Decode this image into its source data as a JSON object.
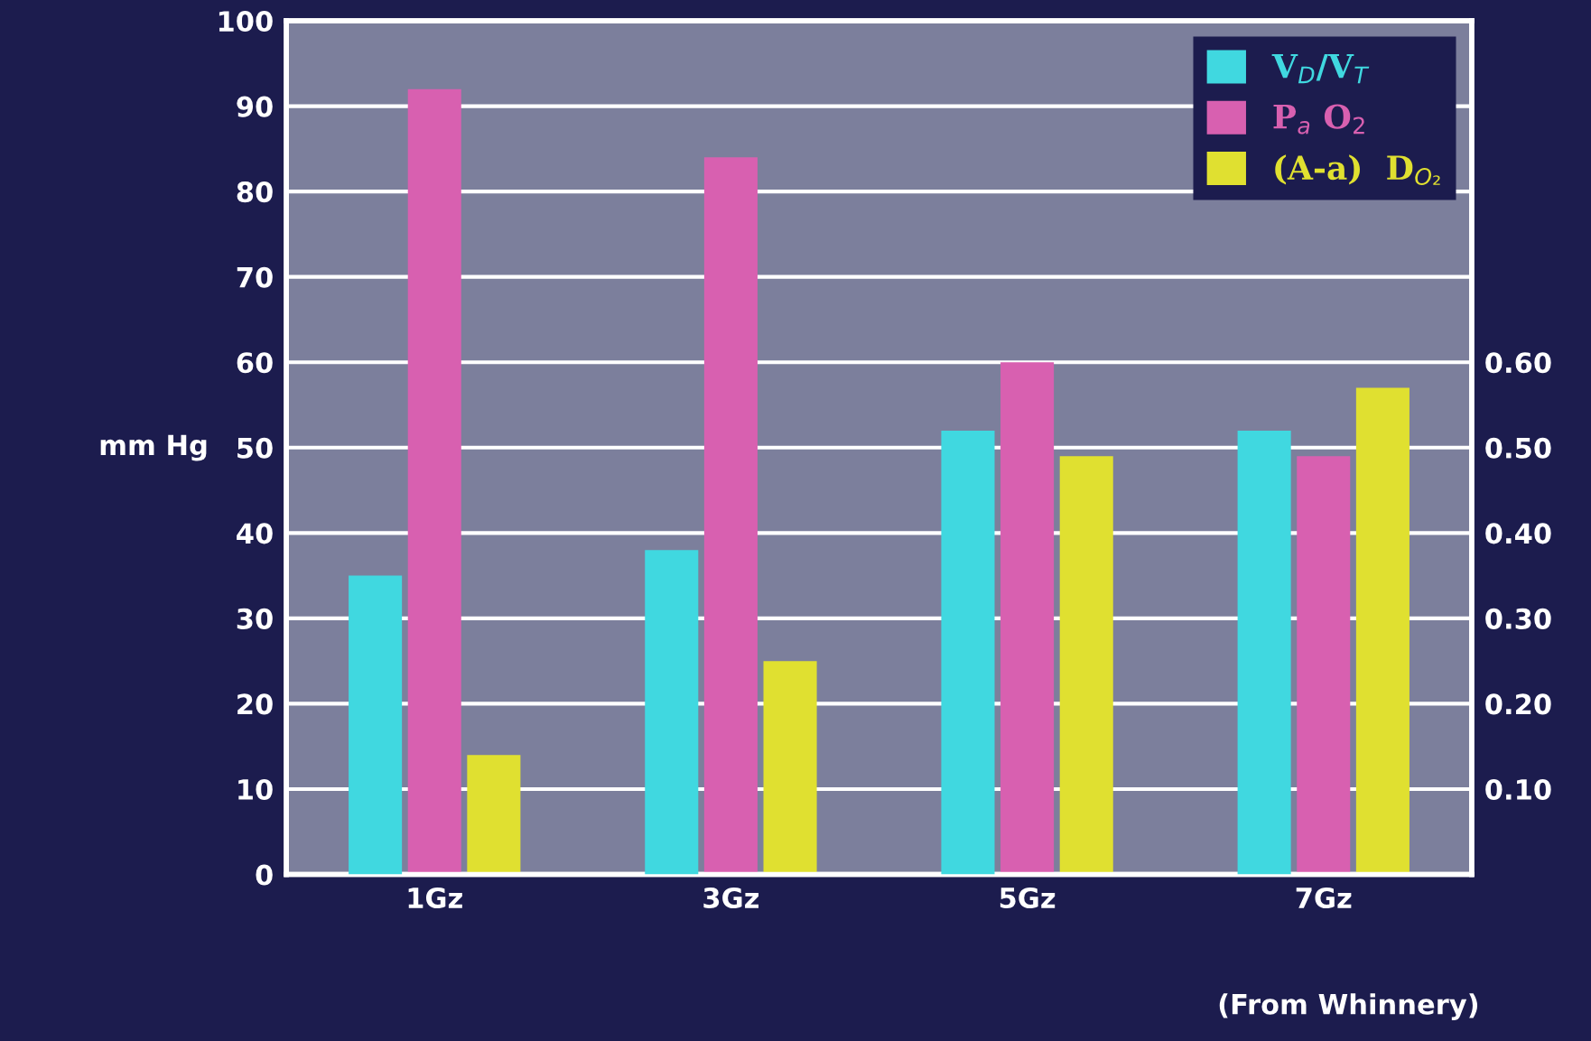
{
  "chart_data": {
    "type": "bar",
    "ylabel": "mm Hg",
    "categories": [
      "1Gz",
      "3Gz",
      "5Gz",
      "7Gz"
    ],
    "series": [
      {
        "name": "V$_{D}$/V$_{T}$",
        "color": "#40d8e0",
        "axis": "y2",
        "values": [
          0.35,
          0.38,
          0.52,
          0.52
        ]
      },
      {
        "name": "P$_{a}$ O$_{2}$",
        "color": "#d860b0",
        "values": [
          92,
          84,
          60,
          49
        ]
      },
      {
        "name": "(A-a)  D$_{O₂}$",
        "color": "#e0e030",
        "values": [
          14,
          25,
          49,
          57
        ]
      }
    ],
    "ylim": [
      0,
      100
    ],
    "yticks": [
      0,
      10,
      20,
      30,
      40,
      50,
      60,
      70,
      80,
      90,
      100
    ],
    "y2lim": [
      0,
      1
    ],
    "y2ticks": [
      {
        "value": 0.1,
        "label": "0.10"
      },
      {
        "value": 0.2,
        "label": "0.20"
      },
      {
        "value": 0.3,
        "label": "0.30"
      },
      {
        "value": 0.4,
        "label": "0.40"
      },
      {
        "value": 0.5,
        "label": "0.50"
      },
      {
        "value": 0.6,
        "label": "0.60"
      }
    ],
    "grid": "y",
    "legend": "top right",
    "annotations": [
      "(From Whinnery)"
    ]
  }
}
